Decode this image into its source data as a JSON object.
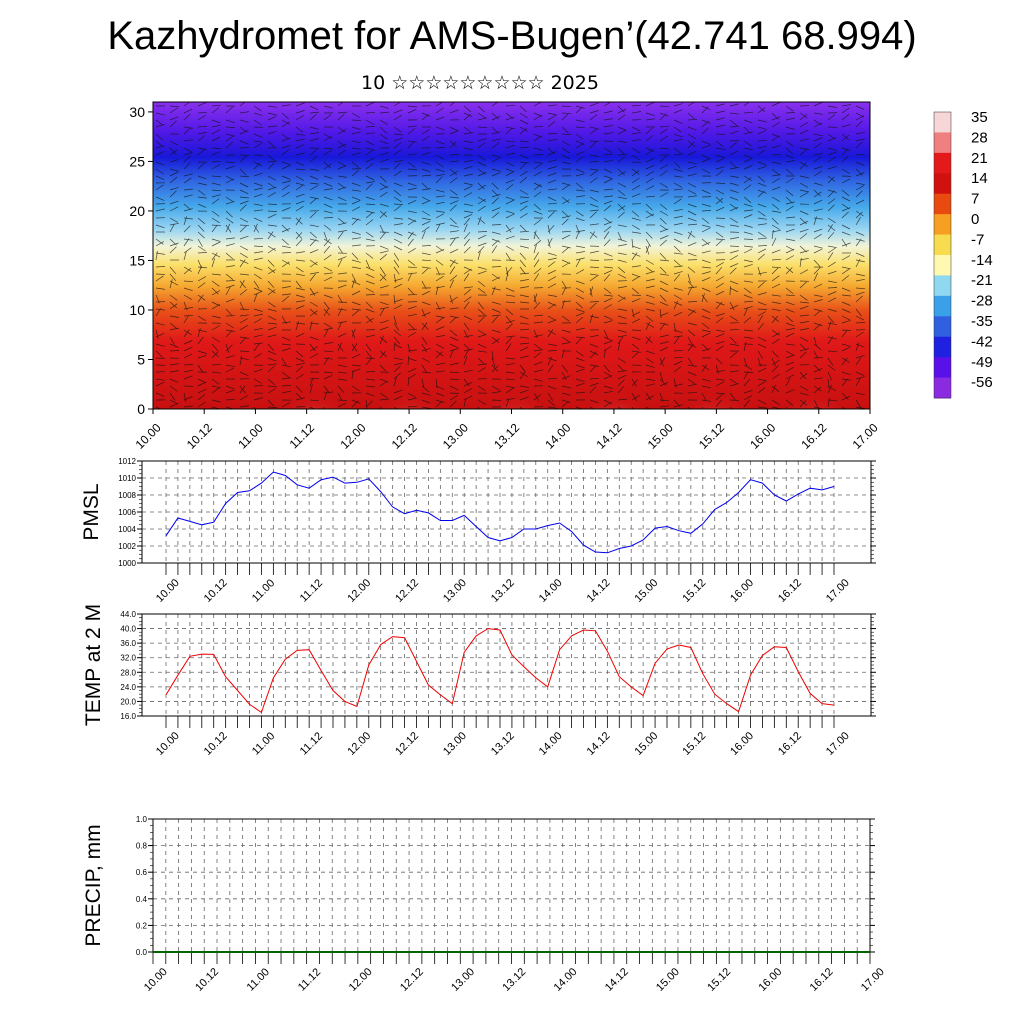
{
  "header": {
    "title": "Kazhydromet for AMS-Bugen’(42.741 68.994)",
    "subtitle": "10 ☆☆☆☆☆☆☆☆☆ 2025"
  },
  "colors": {
    "pmsl_line": "#0000ee",
    "temp_line": "#ee0000",
    "precip_line": "#006400",
    "grid": "#555555"
  },
  "chart_data": [
    {
      "type": "heatmap",
      "description": "vertical cross-section colour field with wind arrows",
      "x_tick_labels": [
        "10.00",
        "10.12",
        "11.00",
        "11.12",
        "12.00",
        "12.12",
        "13.00",
        "13.12",
        "14.00",
        "14.12",
        "15.00",
        "15.12",
        "16.00",
        "16.12",
        "17.00"
      ],
      "y_tick_labels": [
        "0",
        "5",
        "10",
        "15",
        "20",
        "25",
        "30"
      ],
      "ylim": [
        0,
        31
      ],
      "colorbar": {
        "labels": [
          "35",
          "28",
          "21",
          "14",
          "7",
          "0",
          "-7",
          "-14",
          "-21",
          "-28",
          "-35",
          "-42",
          "-49",
          "-56"
        ],
        "stops": [
          "#f6d6d6",
          "#f08080",
          "#e41a1a",
          "#d11010",
          "#e84a10",
          "#f5a020",
          "#f8dc50",
          "#fff8b0",
          "#8fd8f0",
          "#3aa0e8",
          "#3060e0",
          "#2020e0",
          "#5a10e8",
          "#8a2be2"
        ]
      }
    },
    {
      "type": "line",
      "ylabel": "PMSL",
      "ylim": [
        1000,
        1012
      ],
      "y_tick_labels": [
        "1000",
        "1002",
        "1004",
        "1006",
        "1008",
        "1010",
        "1012"
      ],
      "x_tick_labels": [
        "10.00",
        "10.12",
        "11.00",
        "11.12",
        "12.00",
        "12.12",
        "13.00",
        "13.12",
        "14.00",
        "14.12",
        "15.00",
        "15.12",
        "16.00",
        "16.12",
        "17.00"
      ],
      "x_start_hours": 0,
      "x_step_hours": 3,
      "values": [
        1003.2,
        1005.3,
        1004.9,
        1004.5,
        1004.8,
        1007.0,
        1008.3,
        1008.5,
        1009.4,
        1010.7,
        1010.3,
        1009.2,
        1008.8,
        1009.8,
        1010.1,
        1009.4,
        1009.5,
        1009.9,
        1008.4,
        1006.6,
        1005.8,
        1006.2,
        1005.9,
        1005.0,
        1005.0,
        1005.6,
        1004.3,
        1003.0,
        1002.6,
        1003.0,
        1004.0,
        1004.0,
        1004.4,
        1004.7,
        1003.7,
        1002.1,
        1001.3,
        1001.2,
        1001.7,
        1002.0,
        1002.7,
        1004.1,
        1004.3,
        1003.8,
        1003.5,
        1004.6,
        1006.3,
        1007.1,
        1008.3,
        1009.8,
        1009.4,
        1008.0,
        1007.3,
        1008.1,
        1008.8,
        1008.6,
        1009.0
      ]
    },
    {
      "type": "line",
      "ylabel": "TEMP at 2 M",
      "ylim": [
        16,
        44
      ],
      "y_tick_labels": [
        "16.0",
        "20.0",
        "24.0",
        "28.0",
        "32.0",
        "36.0",
        "40.0",
        "44.0"
      ],
      "x_tick_labels": [
        "10.00",
        "10.12",
        "11.00",
        "11.12",
        "12.00",
        "12.12",
        "13.00",
        "13.12",
        "14.00",
        "14.12",
        "15.00",
        "15.12",
        "16.00",
        "16.12",
        "17.00"
      ],
      "x_start_hours": 0,
      "x_step_hours": 3,
      "values": [
        21.8,
        27.2,
        32.4,
        33.0,
        32.9,
        26.8,
        23.0,
        19.2,
        17.0,
        26.5,
        31.6,
        34.0,
        34.2,
        28.5,
        23.0,
        20.0,
        18.6,
        30.0,
        35.6,
        37.8,
        37.5,
        31.0,
        24.5,
        21.8,
        19.4,
        33.5,
        38.0,
        40.0,
        39.6,
        32.8,
        29.5,
        26.5,
        24.0,
        34.2,
        38.0,
        39.6,
        39.4,
        33.8,
        26.8,
        24.0,
        21.6,
        30.5,
        34.4,
        35.5,
        34.8,
        27.6,
        22.0,
        19.4,
        17.2,
        27.2,
        32.6,
        35.0,
        34.8,
        28.2,
        22.2,
        19.4,
        19.0
      ]
    },
    {
      "type": "line",
      "ylabel": "PRECIP, mm",
      "ylim": [
        0,
        1
      ],
      "y_tick_labels": [
        "0.0",
        "0.2",
        "0.4",
        "0.6",
        "0.8",
        "1.0"
      ],
      "x_tick_labels": [
        "10.00",
        "10.12",
        "11.00",
        "11.12",
        "12.00",
        "12.12",
        "13.00",
        "13.12",
        "14.00",
        "14.12",
        "15.00",
        "15.12",
        "16.00",
        "16.12",
        "17.00"
      ],
      "values": [
        0,
        0,
        0,
        0,
        0,
        0,
        0,
        0,
        0,
        0,
        0,
        0,
        0,
        0,
        0,
        0,
        0,
        0,
        0,
        0,
        0,
        0,
        0,
        0,
        0,
        0,
        0,
        0,
        0,
        0,
        0,
        0,
        0,
        0,
        0,
        0,
        0,
        0,
        0,
        0,
        0,
        0,
        0,
        0,
        0,
        0,
        0,
        0,
        0,
        0,
        0,
        0,
        0,
        0,
        0,
        0,
        0
      ]
    }
  ]
}
